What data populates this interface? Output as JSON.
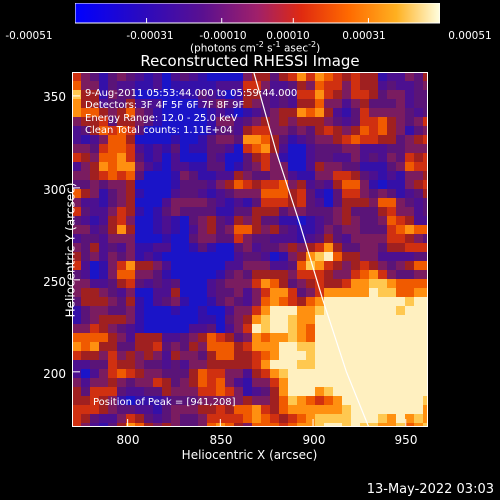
{
  "colorbar": {
    "tick_labels": [
      "-0.00051",
      "-0.00031",
      "-0.00010",
      "0.00010",
      "0.00031",
      "0.00051"
    ],
    "tick_values": [
      -0.00051,
      -0.00031,
      -0.0001,
      0.0001,
      0.00031,
      0.00051
    ],
    "unit_text": "(photons cm",
    "unit_exp1": "-2",
    "unit_mid": " s",
    "unit_exp2": "-1",
    "unit_mid2": " asec",
    "unit_exp3": "-2",
    "unit_close": ")",
    "colors": [
      "#0000ff",
      "#3a0aa8",
      "#5a1080",
      "#8a2a6a",
      "#c03020",
      "#e05010",
      "#ff8000",
      "#ffc040",
      "#ffffe0"
    ]
  },
  "plot": {
    "title": "Reconstructed RHESSI Image",
    "annotations": [
      "9-Aug-2011 05:53:44.000 to 05:59:44.000",
      "Detectors: 3F 4F 5F 6F 7F 8F 9F",
      "Energy Range: 12.0 - 25.0 keV",
      "Clean     Total counts: 1.11E+04"
    ],
    "peak_text": "Position of Peak = [941,208]",
    "xlabel": "Heliocentric X (arcsec)",
    "ylabel": "Heliocentric Y (arcsec)",
    "timestamp": "13-May-2022 03:03"
  },
  "chart_data": {
    "type": "heatmap",
    "title": "Reconstructed RHESSI Image",
    "xlabel": "Heliocentric X (arcsec)",
    "ylabel": "Heliocentric Y (arcsec)",
    "xlim": [
      770,
      962
    ],
    "ylim": [
      170,
      363
    ],
    "xticks": [
      800,
      850,
      900,
      950
    ],
    "yticks": [
      200,
      250,
      300,
      350
    ],
    "peak": [
      941,
      208
    ],
    "limb_curve": {
      "x": [
        868,
        880,
        893,
        905,
        918,
        930
      ],
      "y": [
        363,
        320,
        280,
        240,
        200,
        170
      ]
    },
    "color_range": [
      -0.00051,
      0.00051
    ]
  }
}
